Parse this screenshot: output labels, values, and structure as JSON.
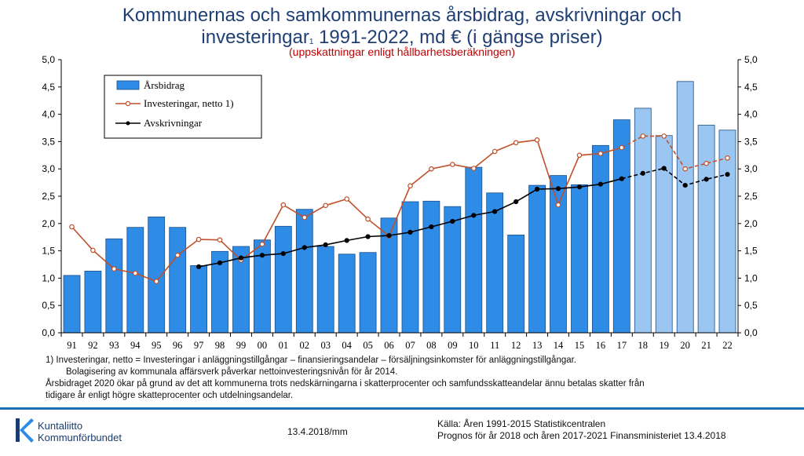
{
  "header": {
    "title_line1": "Kommunernas och samkommunernas årsbidrag, avskrivningar och",
    "title_line2a": "investeringar",
    "title_sup": "1",
    "title_line2b": " 1991-2022, md € (i gängse priser)",
    "subtitle": "(uppskattningar enligt hållbarhetsberäkningen)"
  },
  "colors": {
    "bar_actual": "#2e8be6",
    "bar_forecast": "#9cc6f2",
    "bar_outline": "#1a4f8a",
    "investment_line": "#c0502a",
    "depreciation_line": "#000000",
    "title": "#1f3f74",
    "subtitle": "#c00000"
  },
  "chart_data": {
    "type": "bar",
    "categories": [
      "91",
      "92",
      "93",
      "94",
      "95",
      "96",
      "97",
      "98",
      "99",
      "00",
      "01",
      "02",
      "03",
      "04",
      "05",
      "06",
      "07",
      "08",
      "09",
      "10",
      "11",
      "12",
      "13",
      "14",
      "15",
      "16",
      "17",
      "18",
      "19",
      "20",
      "21",
      "22"
    ],
    "forecast_from_index": 27,
    "ylim": [
      0,
      5
    ],
    "yticks": [
      "0,0",
      "0,5",
      "1,0",
      "1,5",
      "2,0",
      "2,5",
      "3,0",
      "3,5",
      "4,0",
      "4,5",
      "5,0"
    ],
    "grid": false,
    "legend_position": "top-left",
    "series": [
      {
        "name": "Årsbidrag",
        "type": "bar",
        "values": [
          1.05,
          1.13,
          1.72,
          1.93,
          2.12,
          1.93,
          1.23,
          1.49,
          1.58,
          1.7,
          1.95,
          2.26,
          1.58,
          1.44,
          1.47,
          2.1,
          2.4,
          2.41,
          2.31,
          3.03,
          2.56,
          1.79,
          2.7,
          2.88,
          2.71,
          3.43,
          3.9,
          4.11,
          3.61,
          4.6,
          3.8,
          3.71
        ]
      },
      {
        "name": "Investeringar, netto 1)",
        "type": "line",
        "values": [
          1.94,
          1.51,
          1.17,
          1.09,
          0.94,
          1.42,
          1.71,
          1.7,
          1.33,
          1.62,
          2.34,
          2.11,
          2.33,
          2.45,
          2.08,
          1.77,
          2.69,
          3.0,
          3.08,
          3.01,
          3.32,
          3.48,
          3.53,
          2.34,
          3.25,
          3.28,
          3.39,
          3.6,
          3.6,
          3.0,
          3.1,
          3.2
        ]
      },
      {
        "name": "Avskrivningar",
        "type": "line",
        "start_index": 6,
        "values": [
          null,
          null,
          null,
          null,
          null,
          null,
          1.21,
          1.28,
          1.37,
          1.42,
          1.45,
          1.56,
          1.61,
          1.69,
          1.76,
          1.78,
          1.84,
          1.94,
          2.04,
          2.15,
          2.22,
          2.4,
          2.63,
          2.64,
          2.67,
          2.72,
          2.82,
          2.92,
          3.01,
          2.7,
          2.81,
          2.9
        ]
      }
    ]
  },
  "notes": {
    "line1": "1)   Investeringar, netto  = Investeringar i anläggningstillgångar – finansieringsandelar – försäljningsinkomster för anläggningstillgångar.",
    "line2": "Bolagisering av kommunala affärsverk påverkar nettoinvesteringsnivån för år 2014.",
    "line3": "Årsbidraget 2020 ökar på grund av det att kommunerna trots nedskärningarna i skatterprocenter och samfundsskatteandelar ännu betalas skatter från",
    "line4": "tidigare år enligt högre skatteprocenter och utdelningsandelar."
  },
  "footer": {
    "logo_line1": "Kuntaliitto",
    "logo_line2": "Kommunförbundet",
    "date": "13.4.2018/mm",
    "source_line1": "Källa: Åren 1991-2015 Statistikcentralen",
    "source_line2": "Prognos för år 2018 och åren 2017-2021 Finansministeriet 13.4.2018"
  }
}
